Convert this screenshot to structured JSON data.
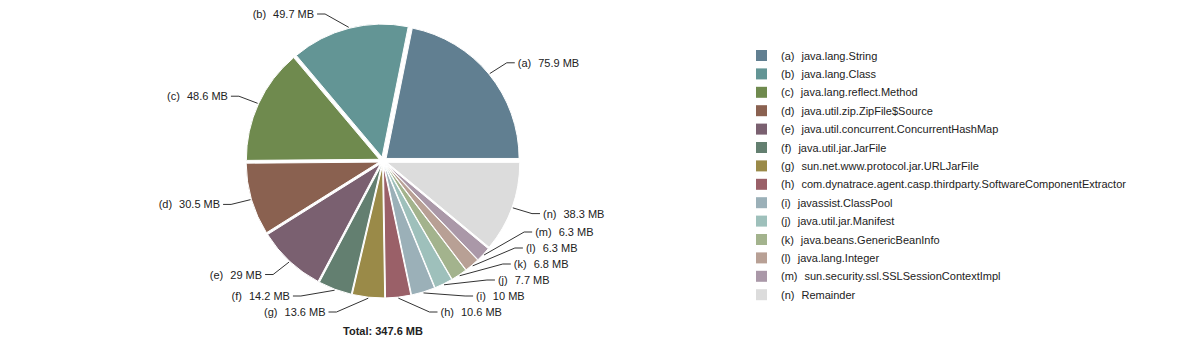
{
  "chart_data": {
    "type": "pie",
    "categories": [
      "java.lang.String",
      "java.lang.Class",
      "java.lang.reflect.Method",
      "java.util.zip.ZipFile$Source",
      "java.util.concurrent.ConcurrentHashMap",
      "java.util.jar.JarFile",
      "sun.net.www.protocol.jar.URLJarFile",
      "com.dynatrace.agent.casp.thirdparty.SoftwareComponentExtractor",
      "javassist.ClassPool",
      "java.util.jar.Manifest",
      "java.beans.GenericBeanInfo",
      "java.lang.Integer",
      "sun.security.ssl.SSLSessionContextImpl",
      "Remainder"
    ],
    "codes": [
      "(a)",
      "(b)",
      "(c)",
      "(d)",
      "(e)",
      "(f)",
      "(g)",
      "(h)",
      "(i)",
      "(j)",
      "(k)",
      "(l)",
      "(m)",
      "(n)"
    ],
    "values": [
      75.9,
      49.7,
      48.6,
      30.5,
      29,
      14.2,
      13.6,
      10.6,
      10,
      7.7,
      6.8,
      6.3,
      6.3,
      38.3
    ],
    "value_labels": [
      "75.9 MB",
      "49.7 MB",
      "48.6 MB",
      "30.5 MB",
      "29 MB",
      "14.2 MB",
      "13.6 MB",
      "10.6 MB",
      "10 MB",
      "7.7 MB",
      "6.8 MB",
      "6.3 MB",
      "6.3 MB",
      "38.3 MB"
    ],
    "colors": [
      "#617f91",
      "#639595",
      "#6f8a4e",
      "#8a6150",
      "#7a6070",
      "#637f70",
      "#9a8a48",
      "#9a6068",
      "#9bb0b8",
      "#9ec0bb",
      "#a3b38d",
      "#b8a095",
      "#aa98a8",
      "#dcdcdc"
    ],
    "data_labels": true,
    "legend": "right",
    "annotations": [
      "Total: 347.6 MB"
    ]
  }
}
